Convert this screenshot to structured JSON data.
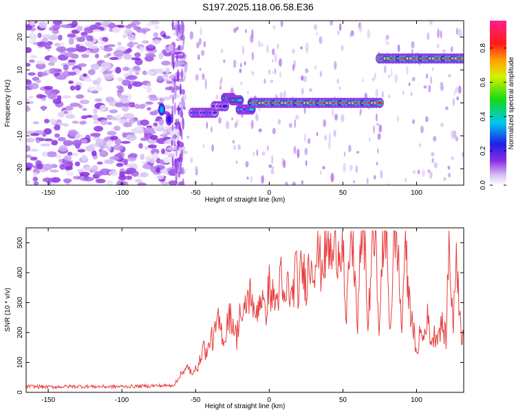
{
  "title": "S197.2025.118.06.58.E36",
  "colors": {
    "background": "#ffffff",
    "snr_line": "#e83a3a",
    "axis": "#000000",
    "spectrogram_faint": "#d9c8f4",
    "spectrogram_strong": "#7a2fe0"
  },
  "chart_data": [
    {
      "type": "heatmap",
      "name_in_figure": "spectrogram",
      "xlabel": "Height of straight line (km)",
      "ylabel": "Frequency (Hz)",
      "xlim": [
        -165,
        132
      ],
      "ylim": [
        -25,
        25
      ],
      "xticks": [
        -150,
        -100,
        -50,
        0,
        50,
        100
      ],
      "yticks": [
        -20,
        -10,
        0,
        10,
        20
      ],
      "colorbar": {
        "label": "Normalized spectral amplitude",
        "range": [
          0,
          0.96
        ],
        "ticks": [
          0.0,
          0.2,
          0.4,
          0.6,
          0.8
        ],
        "tick_labels": [
          "0.0",
          "0.2",
          "0.4",
          "0.6",
          "0.8"
        ],
        "colormap": "rainbow (white-violet-blue-cyan-green-yellow-orange-red-magenta)"
      },
      "tone_segments": [
        {
          "x_start": -52,
          "x_end": -37,
          "freq": -3,
          "amplitude": 0.3
        },
        {
          "x_start": -37,
          "x_end": -30,
          "freq": -1,
          "amplitude": 0.25
        },
        {
          "x_start": -30,
          "x_end": -25,
          "freq": 1.5,
          "amplitude": 0.45
        },
        {
          "x_start": -25,
          "x_end": -20,
          "freq": 0.8,
          "amplitude": 0.6
        },
        {
          "x_start": -20,
          "x_end": -12,
          "freq": -2,
          "amplitude": 0.4
        },
        {
          "x_start": -12,
          "x_end": 75,
          "freq": 0,
          "amplitude": 0.9
        },
        {
          "x_start": 75,
          "x_end": 132,
          "freq": 13.5,
          "amplitude": 0.9
        }
      ],
      "isolated_features": [
        {
          "x": -73,
          "freq": -2,
          "amplitude": 0.35
        },
        {
          "x": -68,
          "freq": -5,
          "amplitude": 0.25
        }
      ],
      "noise_region": {
        "x_start": -165,
        "x_end": -58,
        "amplitude": 0.15
      }
    },
    {
      "type": "line",
      "name_in_figure": "snr",
      "xlabel": "Height of straight line (km)",
      "ylabel": "SNR (10 * v/v)",
      "xlim": [
        -165,
        132
      ],
      "ylim": [
        0,
        550
      ],
      "xticks": [
        -150,
        -100,
        -50,
        0,
        50,
        100
      ],
      "yticks": [
        0,
        100,
        200,
        300,
        400,
        500
      ],
      "series": [
        {
          "color": "#e83a3a",
          "x": [
            -165,
            -150,
            -130,
            -110,
            -90,
            -80,
            -70,
            -65,
            -62,
            -60,
            -58,
            -55,
            -52,
            -50,
            -48,
            -45,
            -42,
            -40,
            -38,
            -35,
            -32,
            -30,
            -28,
            -25,
            -22,
            -20,
            -18,
            -15,
            -12,
            -10,
            -8,
            -5,
            -3,
            0,
            2,
            5,
            8,
            10,
            13,
            15,
            18,
            20,
            22,
            25,
            28,
            30,
            33,
            35,
            38,
            40,
            43,
            45,
            47,
            50,
            52,
            55,
            57,
            60,
            62,
            65,
            67,
            70,
            72,
            75,
            77,
            80,
            82,
            85,
            87,
            90,
            92,
            95,
            97,
            100,
            102,
            105,
            107,
            110,
            112,
            115,
            117,
            120,
            122,
            125,
            127,
            130,
            132
          ],
          "values": [
            20,
            18,
            20,
            19,
            20,
            22,
            22,
            25,
            40,
            70,
            60,
            90,
            50,
            100,
            80,
            160,
            120,
            190,
            170,
            240,
            200,
            170,
            260,
            240,
            180,
            280,
            230,
            310,
            340,
            230,
            290,
            330,
            250,
            360,
            320,
            300,
            380,
            280,
            370,
            300,
            410,
            330,
            420,
            370,
            440,
            430,
            470,
            420,
            460,
            490,
            440,
            500,
            480,
            520,
            200,
            510,
            500,
            200,
            520,
            510,
            200,
            525,
            500,
            200,
            510,
            480,
            200,
            520,
            500,
            200,
            510,
            300,
            260,
            110,
            200,
            180,
            260,
            170,
            190,
            200,
            230,
            180,
            500,
            210,
            490,
            200,
            190
          ]
        }
      ]
    }
  ]
}
